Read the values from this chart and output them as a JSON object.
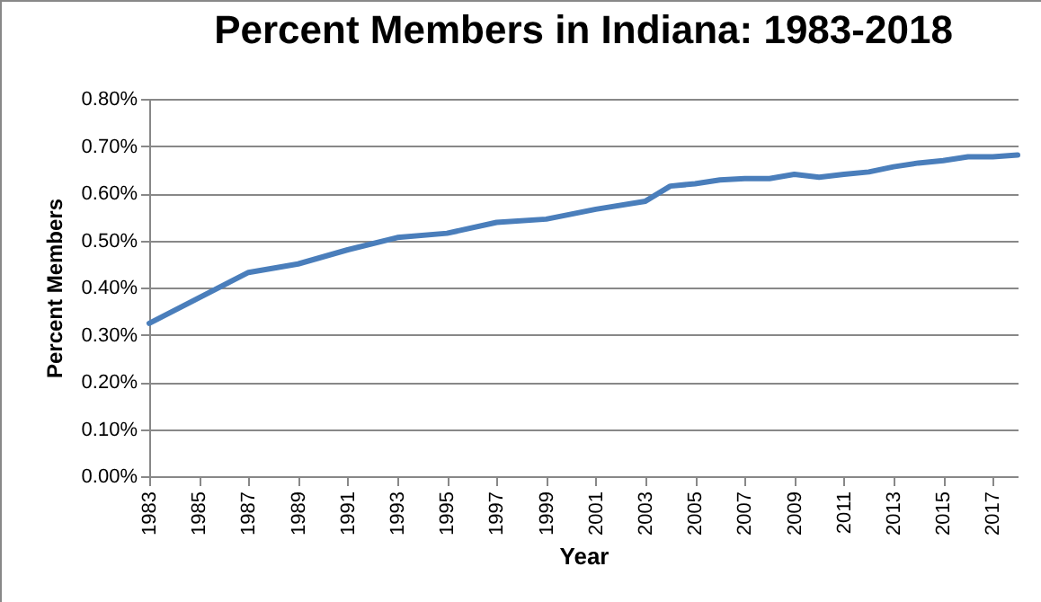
{
  "chart_data": {
    "type": "line",
    "title": "Percent Members in Indiana: 1983-2018",
    "xlabel": "Year",
    "ylabel": "Percent Members",
    "x": [
      1983,
      1987,
      1989,
      1991,
      1993,
      1995,
      1997,
      1999,
      2001,
      2003,
      2004,
      2005,
      2006,
      2007,
      2008,
      2009,
      2010,
      2011,
      2012,
      2013,
      2014,
      2015,
      2016,
      2017,
      2018
    ],
    "series": [
      {
        "color": "#4a7ebb",
        "values": [
          0.324,
          0.432,
          0.45,
          0.48,
          0.506,
          0.515,
          0.538,
          0.545,
          0.566,
          0.583,
          0.615,
          0.62,
          0.628,
          0.631,
          0.631,
          0.64,
          0.634,
          0.64,
          0.645,
          0.656,
          0.664,
          0.669,
          0.677,
          0.677,
          0.681
        ]
      }
    ],
    "xlim": [
      1983,
      2018
    ],
    "xticks": [
      1983,
      1985,
      1987,
      1989,
      1991,
      1993,
      1995,
      1997,
      1999,
      2001,
      2003,
      2005,
      2007,
      2009,
      2011,
      2013,
      2015,
      2017
    ],
    "ylim": [
      0,
      0.8
    ],
    "yticks": [
      {
        "value": 0,
        "label": "0.00%"
      },
      {
        "value": 0.1,
        "label": "0.10%"
      },
      {
        "value": 0.2,
        "label": "0.20%"
      },
      {
        "value": 0.3,
        "label": "0.30%"
      },
      {
        "value": 0.4,
        "label": "0.40%"
      },
      {
        "value": 0.5,
        "label": "0.50%"
      },
      {
        "value": 0.6,
        "label": "0.60%"
      },
      {
        "value": 0.7,
        "label": "0.70%"
      },
      {
        "value": 0.8,
        "label": "0.80%"
      }
    ],
    "grid": "y",
    "marker": "none",
    "line_style": "solid"
  }
}
